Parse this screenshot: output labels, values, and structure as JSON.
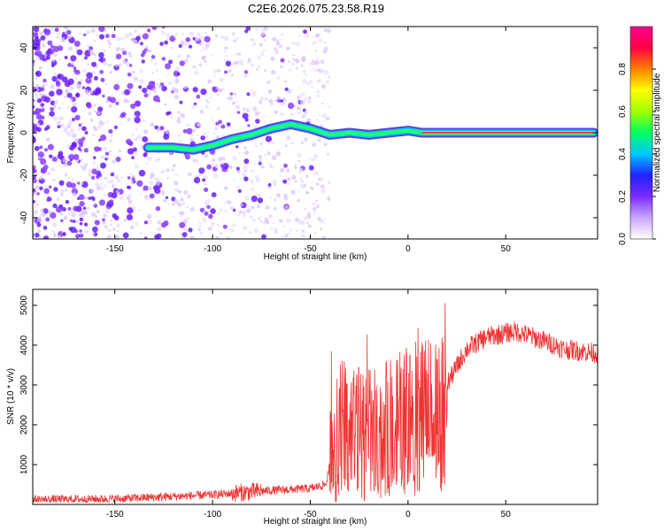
{
  "title": "C2E6.2026.075.23.58.R19",
  "chart_data": [
    {
      "type": "heatmap",
      "xlabel": "Height of straight line (km)",
      "ylabel": "Frequency (Hz)",
      "xlim": [
        -192,
        97
      ],
      "ylim": [
        -50,
        50
      ],
      "x_ticks": [
        -150,
        -100,
        -50,
        0,
        50
      ],
      "y_ticks": [
        -40,
        -20,
        0,
        20,
        40
      ],
      "trace": [
        {
          "x": -133,
          "y": -7
        },
        {
          "x": -120,
          "y": -7
        },
        {
          "x": -110,
          "y": -8
        },
        {
          "x": -100,
          "y": -6
        },
        {
          "x": -90,
          "y": -3
        },
        {
          "x": -80,
          "y": -1
        },
        {
          "x": -70,
          "y": 2
        },
        {
          "x": -60,
          "y": 4
        },
        {
          "x": -50,
          "y": 2
        },
        {
          "x": -40,
          "y": -1
        },
        {
          "x": -30,
          "y": 0
        },
        {
          "x": -20,
          "y": -1
        },
        {
          "x": -10,
          "y": 0
        },
        {
          "x": 0,
          "y": 1
        },
        {
          "x": 7,
          "y": 0
        },
        {
          "x": 95,
          "y": 0
        }
      ],
      "colorbar": {
        "label": "Normalized spectral amplitude",
        "ticks": [
          "0.0",
          "0.2",
          "0.4",
          "0.6",
          "0.8"
        ],
        "range": [
          0,
          1
        ],
        "colors": [
          "#ffffff",
          "#c9a6ff",
          "#7b2bff",
          "#2020ff",
          "#00c8ff",
          "#00ff60",
          "#a0ff00",
          "#ffff00",
          "#ff8000",
          "#ff0040",
          "#ff0090"
        ]
      }
    },
    {
      "type": "line",
      "xlabel": "Height of straight line (km)",
      "ylabel": "SNR (10 * v/v)",
      "xlim": [
        -192,
        97
      ],
      "ylim": [
        0,
        5400
      ],
      "x_ticks": [
        -150,
        -100,
        -50,
        0,
        50
      ],
      "y_ticks": [
        1000,
        2000,
        3000,
        4000,
        5000
      ],
      "color": "#ee3333",
      "envelope": [
        {
          "x": -192,
          "y": 120
        },
        {
          "x": -150,
          "y": 140
        },
        {
          "x": -120,
          "y": 200
        },
        {
          "x": -100,
          "y": 240
        },
        {
          "x": -85,
          "y": 300
        },
        {
          "x": -70,
          "y": 350
        },
        {
          "x": -50,
          "y": 400
        },
        {
          "x": -42,
          "y": 500
        },
        {
          "x": -38,
          "y": 1500
        },
        {
          "x": -34,
          "y": 2000
        },
        {
          "x": -25,
          "y": 1800
        },
        {
          "x": -15,
          "y": 1700
        },
        {
          "x": -5,
          "y": 2200
        },
        {
          "x": 5,
          "y": 2400
        },
        {
          "x": 15,
          "y": 2600
        },
        {
          "x": 22,
          "y": 3200
        },
        {
          "x": 30,
          "y": 3900
        },
        {
          "x": 40,
          "y": 4200
        },
        {
          "x": 55,
          "y": 4350
        },
        {
          "x": 70,
          "y": 4100
        },
        {
          "x": 80,
          "y": 3900
        },
        {
          "x": 97,
          "y": 3800
        }
      ]
    }
  ]
}
